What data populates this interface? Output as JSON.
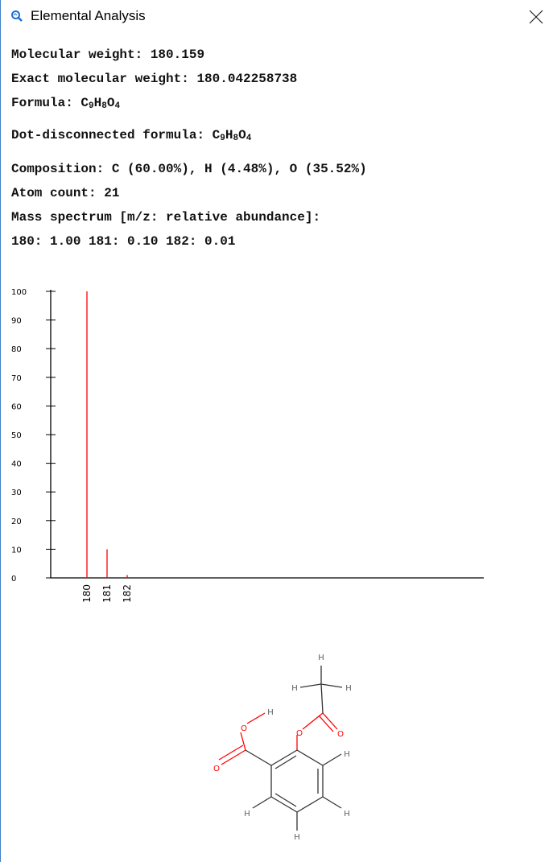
{
  "window": {
    "title": "Elemental Analysis",
    "close_icon": "close-x-icon",
    "app_icon": "search-magnifier-icon"
  },
  "info": {
    "molecular_weight": "Molecular weight: 180.159",
    "exact_weight": "Exact molecular weight: 180.042258738",
    "formula_label": "Formula: ",
    "formula_parts": [
      [
        "C",
        "9"
      ],
      [
        "H",
        "8"
      ],
      [
        "O",
        "4"
      ]
    ],
    "dot_formula_label": "Dot-disconnected formula: ",
    "composition": "Composition: C (60.00%), H (4.48%), O (35.52%)",
    "atom_count": "Atom count: 21",
    "mass_spectrum_header": "Mass spectrum [m/z: relative abundance]:",
    "mass_spectrum_values": "180: 1.00 181: 0.10 182: 0.01"
  },
  "chart_data": {
    "type": "bar",
    "categories": [
      "180",
      "181",
      "182"
    ],
    "values": [
      100,
      10,
      1
    ],
    "ylim": [
      0,
      100
    ],
    "yticks": [
      "0",
      "10",
      "20",
      "30",
      "40",
      "50",
      "60",
      "70",
      "80",
      "90",
      "100"
    ],
    "bar_color": "#ff0000",
    "axis_color": "#000000"
  },
  "molecule": {
    "atoms": {
      "H": "H",
      "O": "O"
    },
    "colors": {
      "bond": "#333333",
      "oxygen": "#ff0000",
      "hydrogen": "#555555"
    }
  }
}
